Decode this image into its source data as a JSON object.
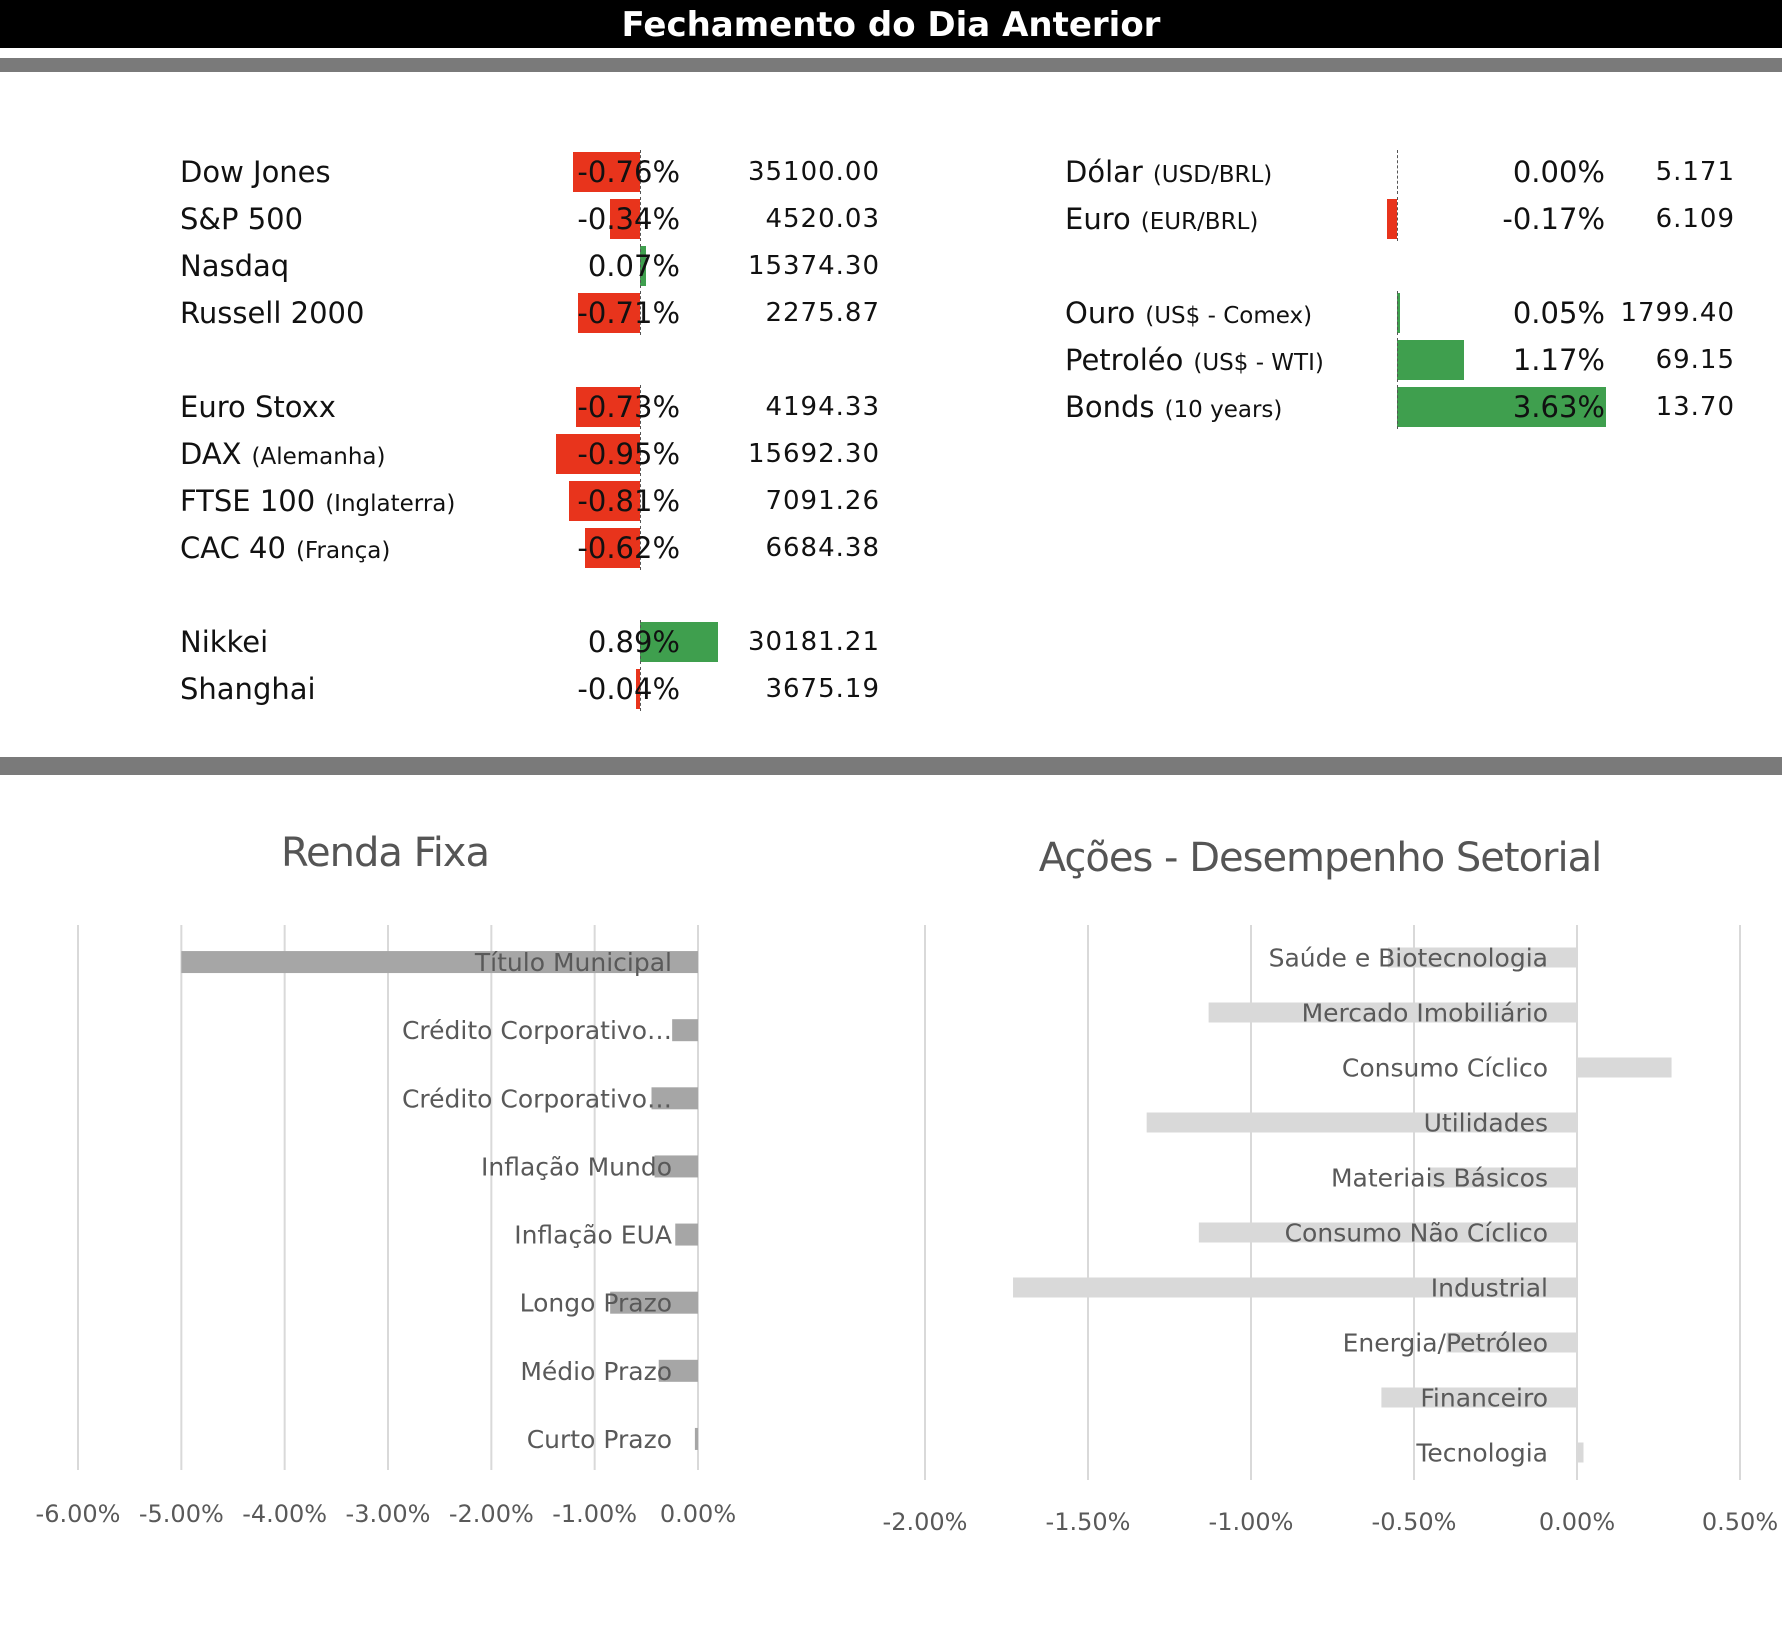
{
  "header": {
    "title": "Fechamento do Dia Anterior"
  },
  "left_markets": [
    {
      "group": 0,
      "name": "Dow Jones",
      "sub": "",
      "pct": -0.76,
      "pct_label": "-0.76%",
      "value": "35100.00"
    },
    {
      "group": 0,
      "name": "S&P 500",
      "sub": "",
      "pct": -0.34,
      "pct_label": "-0.34%",
      "value": "4520.03"
    },
    {
      "group": 0,
      "name": "Nasdaq",
      "sub": "",
      "pct": 0.07,
      "pct_label": "0.07%",
      "value": "15374.30"
    },
    {
      "group": 0,
      "name": "Russell 2000",
      "sub": "",
      "pct": -0.71,
      "pct_label": "-0.71%",
      "value": "2275.87"
    },
    {
      "group": 1,
      "name": "Euro Stoxx",
      "sub": "",
      "pct": -0.73,
      "pct_label": "-0.73%",
      "value": "4194.33"
    },
    {
      "group": 1,
      "name": "DAX",
      "sub": "(Alemanha)",
      "pct": -0.95,
      "pct_label": "-0.95%",
      "value": "15692.30"
    },
    {
      "group": 1,
      "name": "FTSE 100",
      "sub": "(Inglaterra)",
      "pct": -0.81,
      "pct_label": "-0.81%",
      "value": "7091.26"
    },
    {
      "group": 1,
      "name": "CAC 40",
      "sub": "(França)",
      "pct": -0.62,
      "pct_label": "-0.62%",
      "value": "6684.38"
    },
    {
      "group": 2,
      "name": "Nikkei",
      "sub": "",
      "pct": 0.89,
      "pct_label": "0.89%",
      "value": "30181.21"
    },
    {
      "group": 2,
      "name": "Shanghai",
      "sub": "",
      "pct": -0.04,
      "pct_label": "-0.04%",
      "value": "3675.19"
    }
  ],
  "right_markets": [
    {
      "group": 0,
      "name": "Dólar",
      "sub": "(USD/BRL)",
      "pct": 0.0,
      "pct_label": "0.00%",
      "value": "5.171"
    },
    {
      "group": 0,
      "name": "Euro",
      "sub": "(EUR/BRL)",
      "pct": -0.17,
      "pct_label": "-0.17%",
      "value": "6.109"
    },
    {
      "group": 1,
      "name": "Ouro",
      "sub": "(US$ - Comex)",
      "pct": 0.05,
      "pct_label": "0.05%",
      "value": "1799.40"
    },
    {
      "group": 1,
      "name": "Petroléo",
      "sub": "(US$ - WTI)",
      "pct": 1.17,
      "pct_label": "1.17%",
      "value": "69.15"
    },
    {
      "group": 1,
      "name": "Bonds",
      "sub": "(10 years)",
      "pct": 3.63,
      "pct_label": "3.63%",
      "value": "13.70"
    }
  ],
  "colors": {
    "negative": "#e8341c",
    "positive": "#3f9f4e",
    "renda_bar": "#a6a6a6",
    "setor_bar": "#d9d9d9",
    "grid": "#d9d9d9",
    "label": "#595959"
  },
  "chart_data": [
    {
      "type": "bar",
      "orientation": "horizontal",
      "title": "Renda Fixa",
      "categories": [
        "Título Municipal",
        "Crédito Corporativo…",
        "Crédito Corporativo…",
        "Inflação Mundo",
        "Inflação EUA",
        "Longo Prazo",
        "Médio Prazo",
        "Curto Prazo"
      ],
      "values": [
        -5.0,
        -0.25,
        -0.45,
        -0.42,
        -0.22,
        -0.85,
        -0.38,
        -0.03
      ],
      "xlim": [
        -6.0,
        0.0
      ],
      "xticks": [
        "-6.00%",
        "-5.00%",
        "-4.00%",
        "-3.00%",
        "-2.00%",
        "-1.00%",
        "0.00%"
      ],
      "grid": true
    },
    {
      "type": "bar",
      "orientation": "horizontal",
      "title": "Ações - Desempenho Setorial",
      "categories": [
        "Saúde e Biotecnologia",
        "Mercado Imobiliário",
        "Consumo Cíclico",
        "Utilidades",
        "Materiais Básicos",
        "Consumo Não Cíclico",
        "Industrial",
        "Energia/Petróleo",
        "Financeiro",
        "Tecnologia"
      ],
      "values": [
        -0.58,
        -1.13,
        0.29,
        -1.32,
        -0.45,
        -1.16,
        -1.73,
        -0.4,
        -0.6,
        0.02
      ],
      "xlim": [
        -2.0,
        0.5
      ],
      "xticks": [
        "-2.00%",
        "-1.50%",
        "-1.00%",
        "-0.50%",
        "0.00%",
        "0.50%"
      ],
      "grid": true
    }
  ]
}
